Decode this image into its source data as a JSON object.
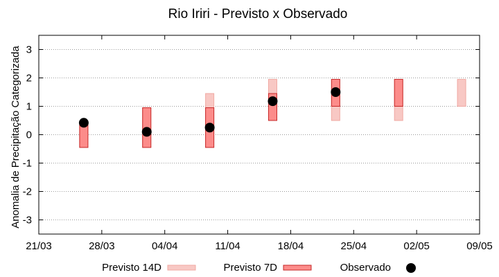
{
  "chart_data": {
    "type": "range-bar-with-points",
    "title": "Rio Iriri - Previsto x Observado",
    "xlabel": "",
    "ylabel": "Anomalia de Precipitação Categorizada",
    "ylim": [
      -3.5,
      3.5
    ],
    "yticks": [
      -3,
      -2,
      -1,
      0,
      1,
      2,
      3
    ],
    "ytick_labels": [
      "-3",
      "-2",
      "-1",
      "0",
      "1",
      "2",
      "3"
    ],
    "xlim_days": [
      0,
      49
    ],
    "xticks_days": [
      0,
      7,
      14,
      21,
      28,
      35,
      42,
      49
    ],
    "xtick_labels": [
      "21/03",
      "28/03",
      "04/04",
      "11/04",
      "18/04",
      "25/04",
      "02/05",
      "09/05"
    ],
    "grid": "horizontal dotted",
    "legend_position": "bottom",
    "series": [
      {
        "name": "Previsto 14D",
        "kind": "range",
        "color": "#f8c8c4",
        "edge": "#f0a8a2",
        "points": [
          {
            "x_day": 5,
            "low": -0.45,
            "high": 0.45
          },
          {
            "x_day": 12,
            "low": -0.45,
            "high": 0.95
          },
          {
            "x_day": 19,
            "low": -0.45,
            "high": 1.45
          },
          {
            "x_day": 26,
            "low": 0.5,
            "high": 1.95
          },
          {
            "x_day": 33,
            "low": 0.5,
            "high": 1.95
          },
          {
            "x_day": 40,
            "low": 0.5,
            "high": 1.95
          },
          {
            "x_day": 47,
            "low": 1.0,
            "high": 1.95
          }
        ]
      },
      {
        "name": "Previsto 7D",
        "kind": "range",
        "color": "#fc8c8a",
        "edge": "#c62828",
        "points": [
          {
            "x_day": 5,
            "low": -0.45,
            "high": 0.45
          },
          {
            "x_day": 12,
            "low": -0.45,
            "high": 0.95
          },
          {
            "x_day": 19,
            "low": -0.45,
            "high": 0.95
          },
          {
            "x_day": 26,
            "low": 0.5,
            "high": 1.45
          },
          {
            "x_day": 33,
            "low": 1.0,
            "high": 1.95
          },
          {
            "x_day": 40,
            "low": 1.0,
            "high": 1.95
          }
        ]
      },
      {
        "name": "Observado",
        "kind": "point",
        "color": "#000000",
        "points": [
          {
            "x_day": 5,
            "y": 0.42
          },
          {
            "x_day": 12,
            "y": 0.1
          },
          {
            "x_day": 19,
            "y": 0.25
          },
          {
            "x_day": 26,
            "y": 1.18
          },
          {
            "x_day": 33,
            "y": 1.5
          }
        ]
      }
    ]
  }
}
